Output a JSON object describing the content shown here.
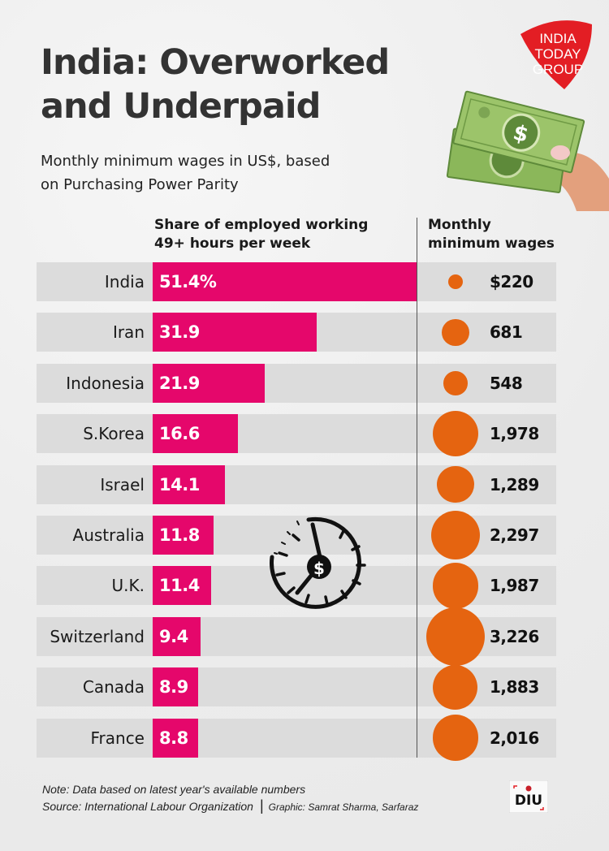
{
  "header": {
    "title_line1": "India: Overworked",
    "title_line2": "and Underpaid",
    "subtitle_line1": "Monthly minimum wages in US$, based",
    "subtitle_line2": "on Purchasing Power Parity"
  },
  "logos": {
    "publisher": "INDIA TODAY GROUP",
    "publisher_lines": [
      "INDIA",
      "TODAY",
      "GROUP"
    ],
    "unit": "DIU"
  },
  "colors": {
    "bar": "#e5076b",
    "bubble": "#e56410",
    "row_bg": "#dcdcdc",
    "logo_red": "#e31e24"
  },
  "chart_data": {
    "type": "bar",
    "title": "India: Overworked and Underpaid",
    "subtitle": "Monthly minimum wages in US$, based on Purchasing Power Parity",
    "orientation": "horizontal",
    "categories": [
      "India",
      "Iran",
      "Indonesia",
      "S.Korea",
      "Israel",
      "Australia",
      "U.K.",
      "Switzerland",
      "Canada",
      "France"
    ],
    "series": [
      {
        "name": "Share of employed working 49+ hours per week",
        "header_line1": "Share of employed working",
        "header_line2": "49+ hours per week",
        "unit": "%",
        "values": [
          51.4,
          31.9,
          21.9,
          16.6,
          14.1,
          11.8,
          11.4,
          9.4,
          8.9,
          8.8
        ],
        "labels": [
          "51.4%",
          "31.9",
          "21.9",
          "16.6",
          "14.1",
          "11.8",
          "11.4",
          "9.4",
          "8.9",
          "8.8"
        ]
      },
      {
        "name": "Monthly minimum wages",
        "header_line1": "Monthly",
        "header_line2": "minimum wages",
        "unit": "US$",
        "encoding": "bubble",
        "values": [
          220,
          681,
          548,
          1978,
          1289,
          2297,
          1987,
          3226,
          1883,
          2016
        ],
        "labels": [
          "$220",
          "681",
          "548",
          "1,978",
          "1,289",
          "2,297",
          "1,987",
          "3,226",
          "1,883",
          "2,016"
        ]
      }
    ],
    "xlim": [
      0,
      51.4
    ],
    "grid": false,
    "legend": "none"
  },
  "footer": {
    "note": "Note: Data based on latest year's available numbers",
    "source": "Source: International Labour Organization",
    "separator": "|",
    "graphic": "Graphic: Samrat Sharma, Sarfaraz"
  }
}
